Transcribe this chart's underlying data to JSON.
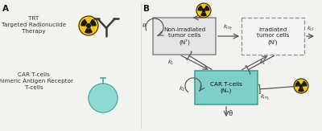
{
  "bg_color": "#f2f2ee",
  "label_A": "A",
  "label_B": "B",
  "trt_text": "TRT\nTargeted Radionuclide\nTherapy",
  "car_text": "CAR T-cells\nChimeric Antigen Receptor\nT-cells",
  "box1_text": "Non-irradiated\ntumor cells\n(Nᵀ)",
  "box2_text": "Irradiated\ntumor cells\n(Nᴵ)",
  "box3_text": "CAR T-cells\n(Nₓ)",
  "box1_color": "#e5e5e5",
  "box1_edge": "#888888",
  "box2_color": "#f5f5f5",
  "box2_edge": "#999999",
  "box3_color": "#7ecfc8",
  "box3_edge": "#3a9e96",
  "arrow_color": "#555555",
  "rad_yellow": "#f5c518",
  "rad_black": "#1a1a1a",
  "rho": "ρ",
  "theta": "θ"
}
